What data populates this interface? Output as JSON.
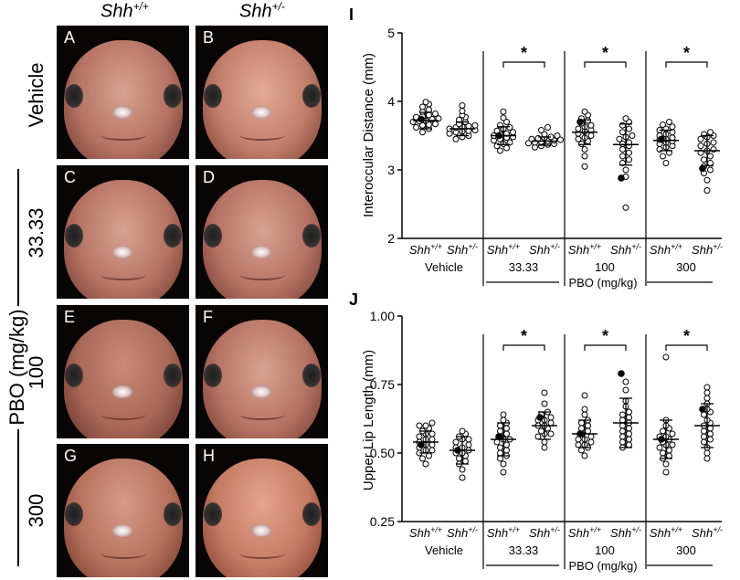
{
  "headers": {
    "col1": {
      "base": "Shh",
      "sup": "+/+"
    },
    "col2": {
      "base": "Shh",
      "sup": "+/-"
    }
  },
  "row_labels": {
    "vehicle": "Vehicle",
    "dose1": "33.33",
    "dose2": "100",
    "dose3": "300",
    "pbo": "PBO (mg/kg)"
  },
  "panel_letters": [
    "A",
    "B",
    "C",
    "D",
    "E",
    "F",
    "G",
    "H"
  ],
  "chart_data": [
    {
      "type": "scatter",
      "panel_label": "I",
      "ylabel": "Interoccular Distance (mm)",
      "ylim": [
        2,
        5
      ],
      "yticks": [
        "2",
        "3",
        "4",
        "5"
      ],
      "group_labels": [
        "Shh+/+",
        "Shh+/-",
        "Shh+/+",
        "Shh+/-",
        "Shh+/+",
        "Shh+/-",
        "Shh+/+",
        "Shh+/-"
      ],
      "treatment_labels": [
        "Vehicle",
        "33.33",
        "100",
        "300"
      ],
      "xlabel": "PBO (mg/kg)",
      "significance": [
        "*",
        "*",
        "*"
      ],
      "series": [
        {
          "name": "Vehicle Shh+/+",
          "mean": 3.72,
          "sd": 0.12,
          "values": [
            3.55,
            3.6,
            3.62,
            3.65,
            3.67,
            3.7,
            3.72,
            3.74,
            3.75,
            3.78,
            3.8,
            3.82,
            3.85,
            3.88,
            3.92,
            3.96,
            3.99,
            3.66,
            3.71,
            3.77
          ],
          "highlight": [
            3.74
          ]
        },
        {
          "name": "Vehicle Shh+/-",
          "mean": 3.6,
          "sd": 0.1,
          "values": [
            3.45,
            3.48,
            3.5,
            3.53,
            3.55,
            3.57,
            3.58,
            3.6,
            3.62,
            3.63,
            3.65,
            3.67,
            3.7,
            3.73,
            3.77,
            3.8,
            3.86,
            3.94,
            3.56,
            3.64
          ],
          "highlight": []
        },
        {
          "name": "33.33 Shh+/+",
          "mean": 3.5,
          "sd": 0.13,
          "values": [
            3.28,
            3.32,
            3.35,
            3.4,
            3.43,
            3.45,
            3.48,
            3.5,
            3.52,
            3.55,
            3.57,
            3.6,
            3.62,
            3.65,
            3.7,
            3.76,
            3.85,
            3.47,
            3.53,
            3.38
          ],
          "highlight": [
            3.5
          ]
        },
        {
          "name": "33.33 Shh+/-",
          "mean": 3.42,
          "sd": 0.06,
          "values": [
            3.33,
            3.35,
            3.37,
            3.39,
            3.4,
            3.41,
            3.42,
            3.43,
            3.44,
            3.45,
            3.46,
            3.48,
            3.5,
            3.52,
            3.58,
            3.62,
            3.38,
            3.47
          ],
          "highlight": []
        },
        {
          "name": "100 Shh+/+",
          "mean": 3.55,
          "sd": 0.18,
          "values": [
            3.05,
            3.2,
            3.3,
            3.38,
            3.42,
            3.47,
            3.5,
            3.53,
            3.56,
            3.6,
            3.63,
            3.65,
            3.68,
            3.72,
            3.75,
            3.8,
            3.85,
            3.58,
            3.45
          ],
          "highlight": [
            3.7
          ]
        },
        {
          "name": "100 Shh+/-",
          "mean": 3.37,
          "sd": 0.3,
          "values": [
            2.45,
            2.9,
            3.0,
            3.1,
            3.15,
            3.2,
            3.3,
            3.35,
            3.4,
            3.45,
            3.48,
            3.5,
            3.55,
            3.6,
            3.65,
            3.7,
            3.75,
            3.25,
            3.38
          ],
          "highlight": [
            2.88
          ]
        },
        {
          "name": "300 Shh+/+",
          "mean": 3.43,
          "sd": 0.15,
          "values": [
            3.1,
            3.2,
            3.25,
            3.3,
            3.35,
            3.38,
            3.4,
            3.42,
            3.45,
            3.47,
            3.5,
            3.52,
            3.55,
            3.58,
            3.6,
            3.63,
            3.66,
            3.7,
            3.33,
            3.44
          ],
          "highlight": [
            3.45
          ]
        },
        {
          "name": "300 Shh+/-",
          "mean": 3.28,
          "sd": 0.22,
          "values": [
            2.7,
            2.85,
            2.95,
            3.0,
            3.05,
            3.1,
            3.15,
            3.2,
            3.25,
            3.28,
            3.3,
            3.35,
            3.38,
            3.4,
            3.45,
            3.48,
            3.5,
            3.52,
            3.55
          ],
          "highlight": [
            3.02
          ]
        }
      ]
    },
    {
      "type": "scatter",
      "panel_label": "J",
      "ylabel": "Upper Lip Length (mm)",
      "ylim": [
        0.25,
        1.0
      ],
      "yticks": [
        "0.25",
        "0.50",
        "0.75",
        "1.00"
      ],
      "group_labels": [
        "Shh+/+",
        "Shh+/-",
        "Shh+/+",
        "Shh+/-",
        "Shh+/+",
        "Shh+/-",
        "Shh+/+",
        "Shh+/-"
      ],
      "treatment_labels": [
        "Vehicle",
        "33.33",
        "100",
        "300"
      ],
      "xlabel": "PBO (mg/kg)",
      "significance": [
        "*",
        "*",
        "*"
      ],
      "series": [
        {
          "name": "Vehicle Shh+/+",
          "mean": 0.54,
          "sd": 0.04,
          "values": [
            0.46,
            0.48,
            0.5,
            0.51,
            0.52,
            0.53,
            0.54,
            0.55,
            0.56,
            0.57,
            0.58,
            0.59,
            0.6,
            0.61,
            0.49,
            0.53,
            0.55,
            0.57,
            0.51,
            0.6
          ],
          "highlight": [
            0.53
          ]
        },
        {
          "name": "Vehicle Shh+/-",
          "mean": 0.51,
          "sd": 0.05,
          "values": [
            0.41,
            0.44,
            0.46,
            0.48,
            0.49,
            0.5,
            0.51,
            0.52,
            0.53,
            0.54,
            0.55,
            0.56,
            0.57,
            0.58,
            0.47,
            0.5,
            0.52,
            0.55
          ],
          "highlight": [
            0.51
          ]
        },
        {
          "name": "33.33 Shh+/+",
          "mean": 0.55,
          "sd": 0.06,
          "values": [
            0.43,
            0.46,
            0.48,
            0.5,
            0.52,
            0.53,
            0.54,
            0.55,
            0.56,
            0.57,
            0.58,
            0.6,
            0.61,
            0.62,
            0.64,
            0.49,
            0.51,
            0.55,
            0.59
          ],
          "highlight": [
            0.56
          ]
        },
        {
          "name": "33.33 Shh+/-",
          "mean": 0.6,
          "sd": 0.05,
          "values": [
            0.52,
            0.54,
            0.56,
            0.57,
            0.58,
            0.59,
            0.6,
            0.61,
            0.62,
            0.63,
            0.64,
            0.65,
            0.68,
            0.72,
            0.57,
            0.6,
            0.62
          ],
          "highlight": [
            0.63
          ]
        },
        {
          "name": "100 Shh+/+",
          "mean": 0.57,
          "sd": 0.05,
          "values": [
            0.49,
            0.51,
            0.52,
            0.53,
            0.54,
            0.55,
            0.56,
            0.57,
            0.58,
            0.59,
            0.6,
            0.61,
            0.62,
            0.64,
            0.66,
            0.71,
            0.53,
            0.55
          ],
          "highlight": [
            0.57
          ]
        },
        {
          "name": "100 Shh+/-",
          "mean": 0.61,
          "sd": 0.09,
          "values": [
            0.52,
            0.53,
            0.54,
            0.55,
            0.56,
            0.57,
            0.58,
            0.6,
            0.61,
            0.62,
            0.63,
            0.65,
            0.67,
            0.69,
            0.73,
            0.76,
            0.59,
            0.64
          ],
          "highlight": [
            0.79
          ]
        },
        {
          "name": "300 Shh+/+",
          "mean": 0.55,
          "sd": 0.07,
          "values": [
            0.43,
            0.46,
            0.48,
            0.5,
            0.51,
            0.52,
            0.53,
            0.54,
            0.55,
            0.56,
            0.57,
            0.58,
            0.59,
            0.6,
            0.62,
            0.85,
            0.49,
            0.53,
            0.56
          ],
          "highlight": [
            0.55
          ]
        },
        {
          "name": "300 Shh+/-",
          "mean": 0.6,
          "sd": 0.08,
          "values": [
            0.48,
            0.5,
            0.52,
            0.54,
            0.55,
            0.57,
            0.58,
            0.6,
            0.61,
            0.62,
            0.64,
            0.66,
            0.68,
            0.7,
            0.72,
            0.74,
            0.56,
            0.59,
            0.65
          ],
          "highlight": [
            0.66
          ]
        }
      ]
    }
  ]
}
